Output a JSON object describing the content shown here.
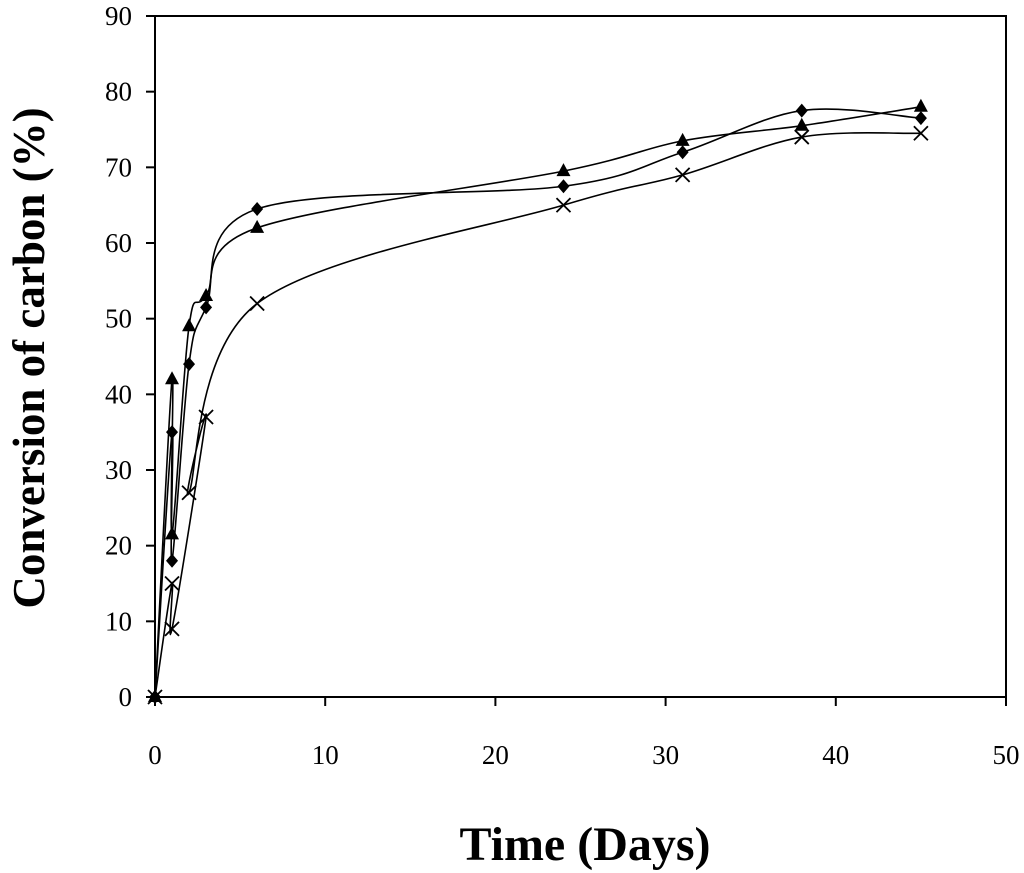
{
  "chart_data": {
    "type": "line",
    "title": "",
    "xlabel": "Time (Days)",
    "ylabel": "Conversion of carbon (%)",
    "xlim": [
      0,
      50
    ],
    "ylim": [
      0,
      90
    ],
    "xticks": [
      0,
      10,
      20,
      30,
      40,
      50
    ],
    "yticks": [
      0,
      10,
      20,
      30,
      40,
      50,
      60,
      70,
      80,
      90
    ],
    "grid": false,
    "legend": "none",
    "series": [
      {
        "name": "diamond",
        "marker": "diamond",
        "color": "#000000",
        "x": [
          0,
          1,
          1,
          2,
          3,
          6,
          24,
          31,
          38,
          45
        ],
        "y": [
          0,
          35,
          18,
          44,
          51.5,
          64.5,
          67.5,
          72,
          77.5,
          76.5
        ]
      },
      {
        "name": "triangle",
        "marker": "triangle",
        "color": "#000000",
        "x": [
          0,
          1,
          1,
          2,
          3,
          6,
          24,
          31,
          38,
          45
        ],
        "y": [
          0,
          42,
          21.5,
          49,
          53,
          62,
          69.5,
          73.5,
          75.5,
          78
        ]
      },
      {
        "name": "cross",
        "marker": "x",
        "color": "#000000",
        "x": [
          0,
          1,
          1,
          3,
          2,
          6,
          24,
          31,
          38,
          45
        ],
        "y": [
          0,
          15,
          9,
          37,
          27,
          52,
          65,
          69,
          74,
          74.5
        ]
      }
    ]
  }
}
